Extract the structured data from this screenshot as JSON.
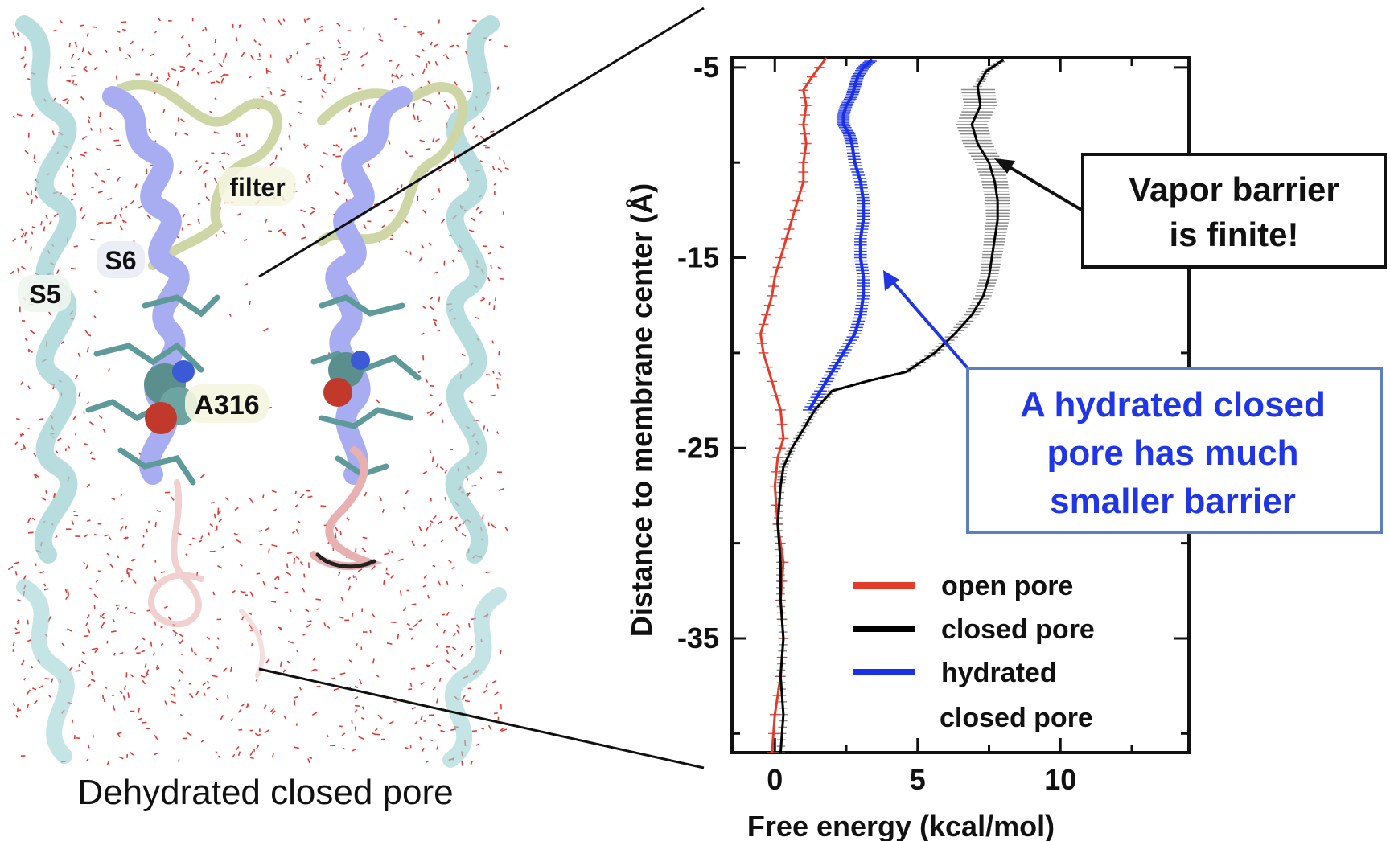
{
  "figure": {
    "caption": "Dehydrated closed pore",
    "structure_labels": {
      "filter": "filter",
      "s6": "S6",
      "s5": "S5",
      "a316": "A316"
    },
    "callout_vapor": {
      "line1": "Vapor barrier",
      "line2": "is finite!"
    },
    "callout_hydrated": {
      "line1": "A hydrated closed",
      "line2": "pore has much",
      "line3": "smaller barrier",
      "color": "#1f35e6"
    }
  },
  "chart_data": {
    "type": "line",
    "xlabel": "Free energy (kcal/mol)",
    "ylabel": "Distance to membrane center (Å)",
    "xlim": [
      -1.5,
      14.5
    ],
    "ylim": [
      -41,
      -4.5
    ],
    "xticks": [
      0,
      5,
      10
    ],
    "yticks": [
      -5,
      -15,
      -25,
      -35
    ],
    "legend_position": "bottom-right",
    "legend": [
      {
        "label": "open pore",
        "color": "#e23b2a"
      },
      {
        "label": "closed pore",
        "color": "#000000"
      },
      {
        "label": "hydrated",
        "label2": "closed pore",
        "color": "#1a2fe8"
      }
    ],
    "series": [
      {
        "name": "open pore",
        "color": "#e23b2a",
        "points": [
          [
            -0.1,
            -41
          ],
          [
            0.0,
            -39
          ],
          [
            0.2,
            -37
          ],
          [
            0.3,
            -35
          ],
          [
            0.2,
            -33
          ],
          [
            0.3,
            -31
          ],
          [
            0.1,
            -29
          ],
          [
            0.0,
            -27
          ],
          [
            0.1,
            -25.5
          ],
          [
            0.3,
            -24.5
          ],
          [
            0.2,
            -23
          ],
          [
            -0.1,
            -21.5
          ],
          [
            -0.4,
            -20
          ],
          [
            -0.5,
            -19
          ],
          [
            -0.3,
            -18
          ],
          [
            -0.1,
            -17
          ],
          [
            0.0,
            -16
          ],
          [
            0.2,
            -15
          ],
          [
            0.4,
            -14
          ],
          [
            0.6,
            -13
          ],
          [
            0.8,
            -12
          ],
          [
            1.0,
            -11
          ],
          [
            1.0,
            -10
          ],
          [
            1.1,
            -9
          ],
          [
            1.0,
            -8
          ],
          [
            1.1,
            -7
          ],
          [
            1.0,
            -6.2
          ],
          [
            1.3,
            -5.5
          ],
          [
            1.8,
            -4.5
          ]
        ]
      },
      {
        "name": "closed pore",
        "color": "#000000",
        "points": [
          [
            0.2,
            -41
          ],
          [
            0.3,
            -39
          ],
          [
            0.2,
            -37
          ],
          [
            0.3,
            -35
          ],
          [
            0.2,
            -33
          ],
          [
            0.2,
            -31
          ],
          [
            0.1,
            -29
          ],
          [
            0.2,
            -27
          ],
          [
            0.3,
            -26
          ],
          [
            0.6,
            -25
          ],
          [
            1.0,
            -24
          ],
          [
            1.4,
            -23
          ],
          [
            2.0,
            -22
          ],
          [
            3.2,
            -21.5
          ],
          [
            4.6,
            -21
          ],
          [
            5.6,
            -20
          ],
          [
            6.3,
            -19
          ],
          [
            6.9,
            -18
          ],
          [
            7.3,
            -17
          ],
          [
            7.5,
            -16
          ],
          [
            7.6,
            -15
          ],
          [
            7.7,
            -14
          ],
          [
            7.8,
            -13
          ],
          [
            7.8,
            -12
          ],
          [
            7.7,
            -11
          ],
          [
            7.5,
            -10
          ],
          [
            7.1,
            -9
          ],
          [
            6.9,
            -8
          ],
          [
            7.2,
            -7
          ],
          [
            7.1,
            -6
          ],
          [
            7.4,
            -5.2
          ],
          [
            8.0,
            -4.6
          ]
        ]
      },
      {
        "name": "hydrated closed pore",
        "color": "#1a2fe8",
        "points": [
          [
            1.2,
            -23
          ],
          [
            1.6,
            -22
          ],
          [
            2.0,
            -21
          ],
          [
            2.4,
            -20
          ],
          [
            2.8,
            -19
          ],
          [
            3.0,
            -18
          ],
          [
            3.1,
            -17
          ],
          [
            3.1,
            -16
          ],
          [
            3.0,
            -15
          ],
          [
            3.0,
            -14
          ],
          [
            3.1,
            -13
          ],
          [
            3.1,
            -12
          ],
          [
            3.0,
            -11
          ],
          [
            2.8,
            -10
          ],
          [
            2.7,
            -9
          ],
          [
            2.6,
            -8.5
          ],
          [
            2.4,
            -8
          ],
          [
            2.4,
            -7.5
          ],
          [
            2.5,
            -7
          ],
          [
            2.7,
            -6.5
          ],
          [
            2.8,
            -6
          ],
          [
            2.9,
            -5.5
          ],
          [
            3.1,
            -5
          ],
          [
            3.4,
            -4.6
          ]
        ]
      }
    ]
  },
  "colors": {
    "water": "#e03a35",
    "helix_s5": "#9fd2d3",
    "helix_s6": "#a8acf0",
    "filter_loop": "#d5dcaf",
    "pink_loop": "#e8b0b0"
  }
}
